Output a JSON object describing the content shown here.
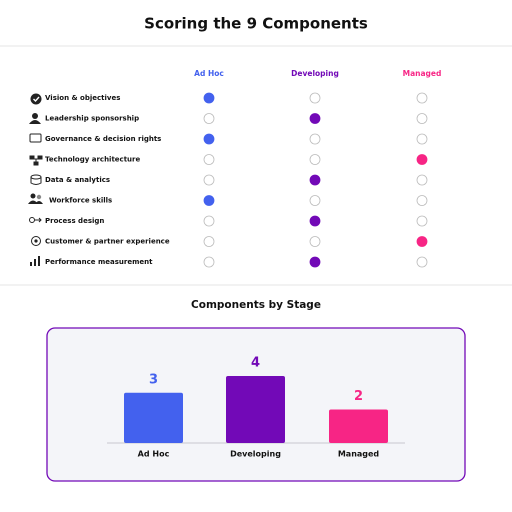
{
  "header": {
    "title": "Scoring the 9 Components"
  },
  "table": {
    "columns": [
      {
        "label": "Ad Hoc",
        "color": "#4361ee"
      },
      {
        "label": "Developing",
        "color": "#7209b7"
      },
      {
        "label": "Managed",
        "color": "#f72585"
      }
    ],
    "rows": [
      {
        "label": "Vision & objectives",
        "stage": "Ad Hoc"
      },
      {
        "label": "Leadership sponsorship",
        "stage": "Developing"
      },
      {
        "label": "Governance & decision rights",
        "stage": "Ad Hoc"
      },
      {
        "label": "Technology architecture",
        "stage": "Managed"
      },
      {
        "label": "Data & analytics",
        "stage": "Developing"
      },
      {
        "label": "Workforce skills",
        "stage": "Ad Hoc"
      },
      {
        "label": "Process design",
        "stage": "Developing"
      },
      {
        "label": "Customer & partner experience",
        "stage": "Managed"
      },
      {
        "label": "Performance measurement",
        "stage": "Developing"
      }
    ]
  },
  "chart_data": {
    "type": "bar",
    "title": "Components by Stage",
    "categories": [
      "Ad Hoc",
      "Developing",
      "Managed"
    ],
    "values": [
      3,
      4,
      2
    ],
    "colors": [
      "#4361ee",
      "#7209b7",
      "#f72585"
    ]
  }
}
